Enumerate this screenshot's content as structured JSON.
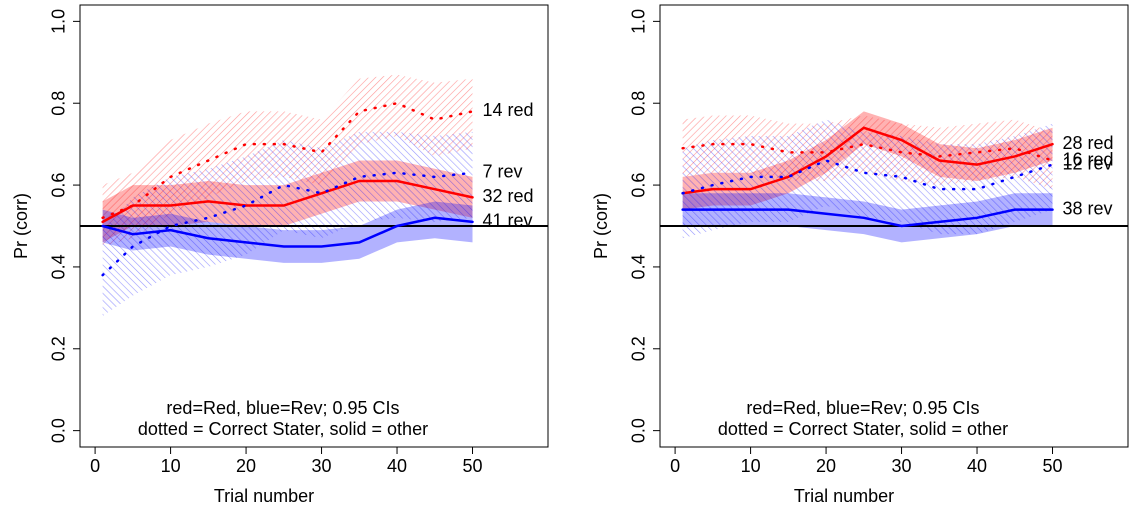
{
  "chart_data": [
    {
      "type": "line",
      "xlabel": "Trial number",
      "ylabel": "Pr (corr)",
      "legend_lines": [
        "red=Red, blue=Rev;  0.95 CIs",
        "dotted = Correct Stater, solid = other"
      ],
      "xlim": [
        -2,
        60
      ],
      "ylim": [
        -0.04,
        1.04
      ],
      "xticks": [
        0,
        10,
        20,
        30,
        40,
        50
      ],
      "yticks": [
        {
          "value": 0,
          "label": "0.0"
        },
        0.2,
        0.4,
        0.6,
        0.8,
        {
          "value": 1,
          "label": "1.0"
        }
      ],
      "hline": 0.5,
      "x": [
        1,
        5,
        10,
        15,
        20,
        25,
        30,
        35,
        40,
        45,
        50
      ],
      "series": [
        {
          "name": "14 red",
          "color": "#ff0000",
          "style": "dotted",
          "values": [
            0.52,
            0.55,
            0.62,
            0.66,
            0.7,
            0.7,
            0.68,
            0.78,
            0.8,
            0.76,
            0.78
          ],
          "lower": [
            0.45,
            0.47,
            0.53,
            0.57,
            0.61,
            0.62,
            0.6,
            0.7,
            0.72,
            0.67,
            0.69
          ],
          "upper": [
            0.6,
            0.63,
            0.71,
            0.75,
            0.78,
            0.78,
            0.76,
            0.86,
            0.87,
            0.85,
            0.86
          ]
        },
        {
          "name": "32 red",
          "color": "#ff0000",
          "style": "solid",
          "values": [
            0.51,
            0.55,
            0.55,
            0.56,
            0.55,
            0.55,
            0.58,
            0.61,
            0.61,
            0.59,
            0.57
          ],
          "lower": [
            0.46,
            0.5,
            0.5,
            0.51,
            0.5,
            0.5,
            0.53,
            0.56,
            0.56,
            0.54,
            0.52
          ],
          "upper": [
            0.56,
            0.6,
            0.6,
            0.61,
            0.6,
            0.6,
            0.63,
            0.66,
            0.66,
            0.64,
            0.62
          ]
        },
        {
          "name": "7 rev",
          "color": "#0000ff",
          "style": "dotted",
          "values": [
            0.38,
            0.45,
            0.5,
            0.52,
            0.55,
            0.6,
            0.58,
            0.62,
            0.63,
            0.62,
            0.63
          ],
          "lower": [
            0.28,
            0.33,
            0.38,
            0.4,
            0.43,
            0.49,
            0.47,
            0.51,
            0.52,
            0.51,
            0.52
          ],
          "upper": [
            0.49,
            0.57,
            0.62,
            0.64,
            0.67,
            0.71,
            0.69,
            0.73,
            0.73,
            0.72,
            0.73
          ]
        },
        {
          "name": "41 rev",
          "color": "#0000ff",
          "style": "solid",
          "values": [
            0.5,
            0.48,
            0.49,
            0.47,
            0.46,
            0.45,
            0.45,
            0.46,
            0.5,
            0.52,
            0.51
          ],
          "lower": [
            0.46,
            0.44,
            0.45,
            0.43,
            0.42,
            0.41,
            0.41,
            0.42,
            0.46,
            0.47,
            0.46
          ],
          "upper": [
            0.54,
            0.52,
            0.53,
            0.51,
            0.5,
            0.49,
            0.49,
            0.5,
            0.54,
            0.56,
            0.55
          ]
        }
      ]
    },
    {
      "type": "line",
      "xlabel": "Trial number",
      "ylabel": "Pr (corr)",
      "legend_lines": [
        "red=Red, blue=Rev;  0.95 CIs",
        "dotted = Correct Stater, solid = other"
      ],
      "xlim": [
        -2,
        60
      ],
      "ylim": [
        -0.04,
        1.04
      ],
      "xticks": [
        0,
        10,
        20,
        30,
        40,
        50
      ],
      "yticks": [
        {
          "value": 0,
          "label": "0.0"
        },
        0.2,
        0.4,
        0.6,
        0.8,
        {
          "value": 1,
          "label": "1.0"
        }
      ],
      "hline": 0.5,
      "x": [
        1,
        5,
        10,
        15,
        20,
        25,
        30,
        35,
        40,
        45,
        50
      ],
      "series": [
        {
          "name": "28 red",
          "color": "#ff0000",
          "style": "solid",
          "values": [
            0.58,
            0.59,
            0.59,
            0.62,
            0.67,
            0.74,
            0.71,
            0.66,
            0.65,
            0.67,
            0.7
          ],
          "lower": [
            0.54,
            0.55,
            0.55,
            0.58,
            0.63,
            0.7,
            0.67,
            0.62,
            0.61,
            0.63,
            0.66
          ],
          "upper": [
            0.62,
            0.63,
            0.63,
            0.66,
            0.71,
            0.78,
            0.75,
            0.7,
            0.69,
            0.71,
            0.74
          ]
        },
        {
          "name": "16 red",
          "color": "#ff0000",
          "style": "dotted",
          "values": [
            0.69,
            0.7,
            0.7,
            0.68,
            0.68,
            0.7,
            0.68,
            0.67,
            0.68,
            0.69,
            0.66
          ],
          "lower": [
            0.62,
            0.63,
            0.63,
            0.61,
            0.61,
            0.63,
            0.61,
            0.6,
            0.61,
            0.62,
            0.59
          ],
          "upper": [
            0.76,
            0.77,
            0.77,
            0.75,
            0.75,
            0.77,
            0.75,
            0.74,
            0.75,
            0.76,
            0.73
          ]
        },
        {
          "name": "12 rev",
          "color": "#0000ff",
          "style": "dotted",
          "values": [
            0.58,
            0.6,
            0.62,
            0.62,
            0.66,
            0.63,
            0.62,
            0.59,
            0.59,
            0.62,
            0.65
          ],
          "lower": [
            0.47,
            0.49,
            0.51,
            0.51,
            0.55,
            0.52,
            0.51,
            0.48,
            0.48,
            0.51,
            0.54
          ],
          "upper": [
            0.69,
            0.71,
            0.72,
            0.72,
            0.76,
            0.73,
            0.72,
            0.7,
            0.7,
            0.72,
            0.75
          ]
        },
        {
          "name": "38 rev",
          "color": "#0000ff",
          "style": "solid",
          "values": [
            0.54,
            0.54,
            0.54,
            0.54,
            0.53,
            0.52,
            0.5,
            0.51,
            0.52,
            0.54,
            0.54
          ],
          "lower": [
            0.5,
            0.5,
            0.5,
            0.5,
            0.49,
            0.48,
            0.46,
            0.47,
            0.48,
            0.5,
            0.5
          ],
          "upper": [
            0.58,
            0.58,
            0.58,
            0.58,
            0.57,
            0.56,
            0.54,
            0.55,
            0.56,
            0.58,
            0.58
          ]
        }
      ]
    }
  ]
}
